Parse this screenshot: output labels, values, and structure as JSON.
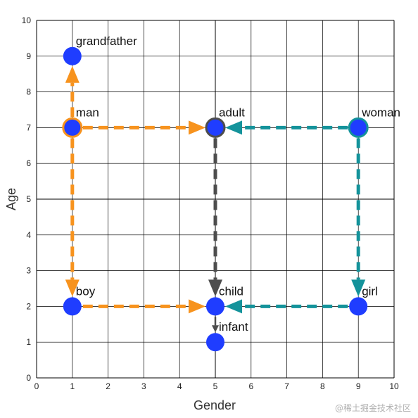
{
  "chart_data": {
    "type": "scatter",
    "title": "",
    "xlabel": "Gender",
    "ylabel": "Age",
    "xlim": [
      0,
      10
    ],
    "ylim": [
      0,
      10
    ],
    "xticks": [
      "0",
      "1",
      "2",
      "3",
      "4",
      "5",
      "6",
      "7",
      "8",
      "9",
      "10"
    ],
    "yticks": [
      "0",
      "1",
      "2",
      "3",
      "4",
      "5",
      "6",
      "7",
      "8",
      "9",
      "10"
    ],
    "grid": true,
    "points": [
      {
        "label": "grandfather",
        "x": 1,
        "y": 9
      },
      {
        "label": "man",
        "x": 1,
        "y": 7
      },
      {
        "label": "adult",
        "x": 5,
        "y": 7
      },
      {
        "label": "woman",
        "x": 9,
        "y": 7
      },
      {
        "label": "boy",
        "x": 1,
        "y": 2
      },
      {
        "label": "child",
        "x": 5,
        "y": 2
      },
      {
        "label": "girl",
        "x": 9,
        "y": 2
      },
      {
        "label": "infant",
        "x": 5,
        "y": 1
      }
    ],
    "arrows": [
      {
        "from": "man",
        "to": "grandfather",
        "color": "#f7931e",
        "style": "dashed"
      },
      {
        "from": "man",
        "to": "adult",
        "color": "#f7931e",
        "style": "dashed"
      },
      {
        "from": "man",
        "to": "boy",
        "color": "#f7931e",
        "style": "dashed"
      },
      {
        "from": "boy",
        "to": "child",
        "color": "#f7931e",
        "style": "dashed"
      },
      {
        "from": "woman",
        "to": "adult",
        "color": "#14939b",
        "style": "dashed"
      },
      {
        "from": "woman",
        "to": "girl",
        "color": "#14939b",
        "style": "dashed"
      },
      {
        "from": "girl",
        "to": "child",
        "color": "#14939b",
        "style": "dashed"
      },
      {
        "from": "adult",
        "to": "child",
        "color": "#4d4d4d",
        "style": "dashed"
      },
      {
        "from": "child",
        "to": "infant",
        "color": "#4d4d4d",
        "style": "solid"
      }
    ],
    "point_color": "#1f3dff",
    "point_rings": {
      "man": "#f7931e",
      "adult": "#4d4d4d",
      "woman": "#14939b"
    }
  },
  "watermark": "@稀土掘金技术社区"
}
